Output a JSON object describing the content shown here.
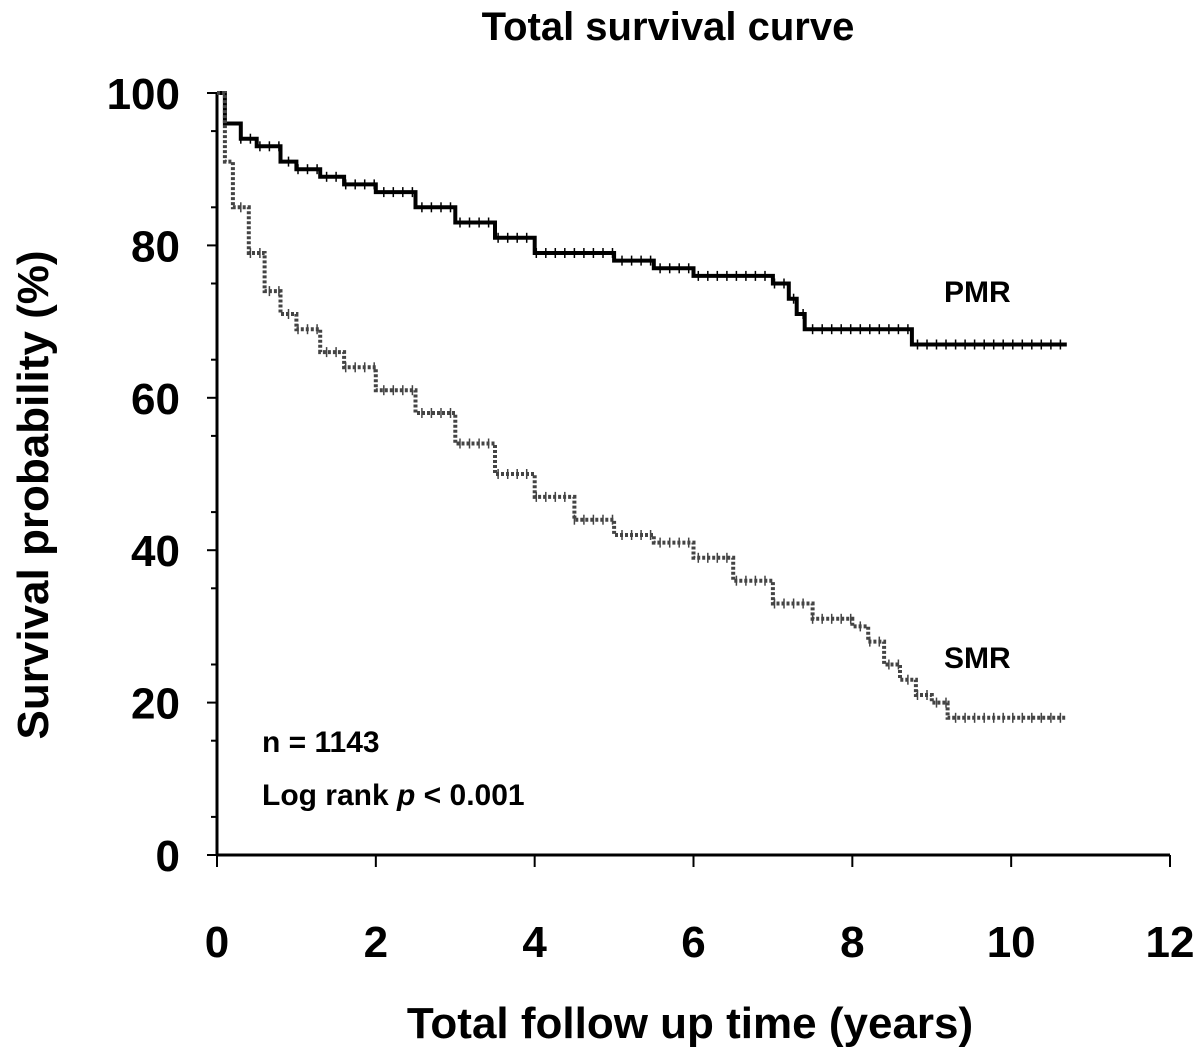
{
  "chart_data": {
    "type": "line",
    "title": "Total survival curve",
    "xlabel": "Total follow up time (years)",
    "ylabel": "Survival probability (%)",
    "xlim": [
      0,
      12
    ],
    "ylim": [
      0,
      100
    ],
    "xticks": [
      0,
      2,
      4,
      6,
      8,
      10,
      12
    ],
    "yticks": [
      0,
      20,
      40,
      60,
      80,
      100
    ],
    "grid": false,
    "legend": "none",
    "series": [
      {
        "name": "PMR",
        "color": "#000000",
        "style": "solid",
        "x": [
          0,
          0.1,
          0.3,
          0.5,
          0.8,
          1.0,
          1.3,
          1.6,
          2.0,
          2.5,
          3.0,
          3.5,
          4.0,
          4.5,
          5.0,
          5.5,
          6.0,
          6.5,
          7.0,
          7.2,
          7.3,
          7.4,
          8.0,
          8.7,
          8.75,
          9.5,
          10.0,
          10.7
        ],
        "values": [
          100,
          96,
          94,
          93,
          91,
          90,
          89,
          88,
          87,
          85,
          83,
          81,
          79,
          79,
          78,
          77,
          76,
          76,
          75,
          73,
          71,
          69,
          69,
          69,
          67,
          67,
          67,
          67
        ]
      },
      {
        "name": "SMR",
        "color": "#444444",
        "style": "dotted",
        "x": [
          0,
          0.1,
          0.2,
          0.4,
          0.6,
          0.8,
          1.0,
          1.3,
          1.6,
          2.0,
          2.5,
          3.0,
          3.5,
          4.0,
          4.5,
          5.0,
          5.5,
          6.0,
          6.5,
          7.0,
          7.5,
          8.0,
          8.2,
          8.4,
          8.6,
          8.8,
          9.0,
          9.2,
          9.5,
          10.0,
          10.7
        ],
        "values": [
          100,
          91,
          85,
          79,
          74,
          71,
          69,
          66,
          64,
          61,
          58,
          54,
          50,
          47,
          44,
          42,
          41,
          39,
          36,
          33,
          31,
          30,
          28,
          25,
          23,
          21,
          20,
          18,
          18,
          18,
          18
        ]
      }
    ],
    "annotations": {
      "n": "n = 1143",
      "logrank_prefix": "Log rank ",
      "logrank_p": "p",
      "logrank_suffix": " < 0.001"
    }
  }
}
